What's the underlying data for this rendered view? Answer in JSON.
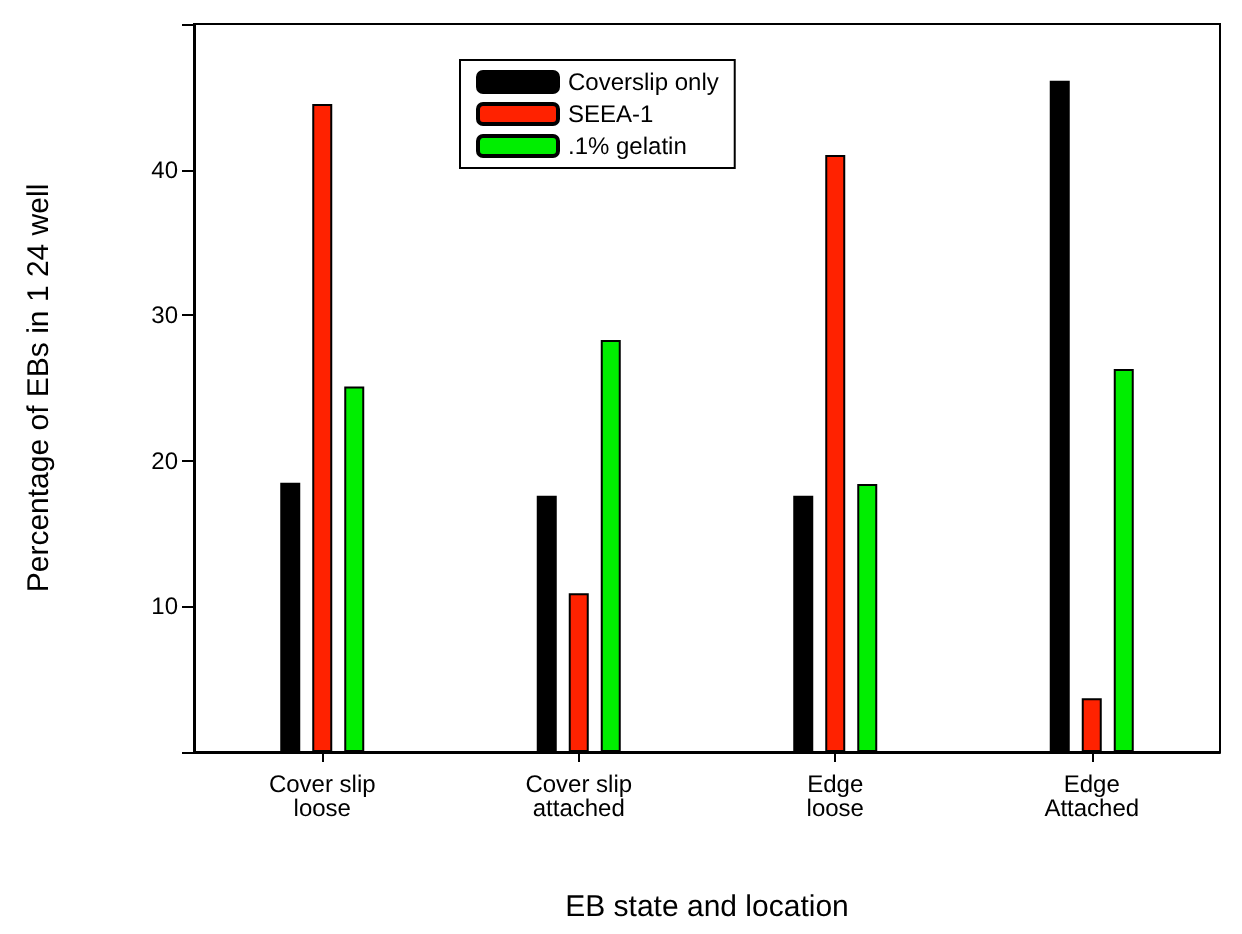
{
  "chart_data": {
    "type": "bar",
    "xlabel": "EB state and location",
    "ylabel": "Percentage of EBs in 1 24 well",
    "categories": [
      "Cover slip\nloose",
      "Cover slip\nattached",
      "Edge\nloose",
      "Edge\nAttached"
    ],
    "series": [
      {
        "name": "Coverslip only",
        "color": "#000000",
        "values": [
          18.5,
          17.6,
          17.6,
          46.1
        ]
      },
      {
        "name": "SEEA-1",
        "color": "#ff2200",
        "values": [
          44.5,
          10.9,
          41.0,
          3.7
        ]
      },
      {
        "name": ".1% gelatin",
        "color": "#00ee00",
        "values": [
          25.1,
          28.3,
          18.4,
          26.3
        ]
      }
    ],
    "ylim": [
      0,
      50
    ],
    "yticks": [
      {
        "value": 0,
        "label": null
      },
      10,
      20,
      30,
      40,
      {
        "value": 50,
        "label": null
      }
    ],
    "grid": false,
    "legend": "top"
  }
}
